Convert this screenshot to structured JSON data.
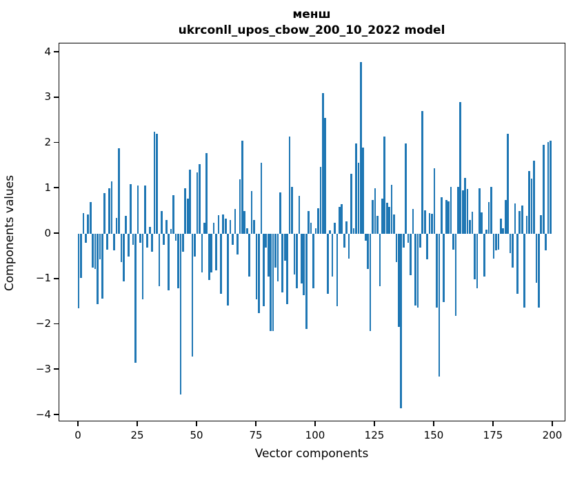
{
  "figure": {
    "title_line1": "менш",
    "title_line2": "ukrconll_upos_cbow_200_10_2022 model",
    "xlabel": "Vector components",
    "ylabel": "Components values"
  },
  "chart_data": {
    "type": "bar",
    "title": "менш\nukrconll_upos_cbow_200_10_2022 model",
    "xlabel": "Vector components",
    "ylabel": "Components values",
    "bar_color": "#1f77b4",
    "background_color": "#ffffff",
    "grid": false,
    "legend_position": "none",
    "x_start": 0,
    "x_step": 1,
    "n_bars": 200,
    "xticks": [
      0,
      25,
      50,
      75,
      100,
      125,
      150,
      175,
      200
    ],
    "yticks": [
      4,
      3,
      2,
      1,
      0,
      -1,
      -2,
      -3,
      -4
    ],
    "xlim": [
      -8.1,
      205.5
    ],
    "ylim": [
      -4.15,
      4.2
    ],
    "values": [
      -1.65,
      -0.97,
      0.45,
      -0.2,
      0.43,
      0.7,
      -0.75,
      -0.78,
      -1.55,
      -0.57,
      -1.43,
      0.89,
      -0.35,
      1.0,
      1.16,
      -0.36,
      0.35,
      1.88,
      -0.63,
      -1.05,
      0.4,
      -0.5,
      1.09,
      -0.25,
      -2.85,
      1.06,
      -0.2,
      -1.45,
      1.06,
      -0.3,
      0.15,
      -0.4,
      2.25,
      2.2,
      -1.15,
      0.5,
      -0.25,
      0.3,
      -1.25,
      0.1,
      0.85,
      -0.15,
      -1.2,
      -3.55,
      -0.4,
      1.0,
      0.78,
      1.42,
      -2.7,
      -0.5,
      1.35,
      1.54,
      -0.85,
      0.24,
      1.78,
      -1.02,
      -0.85,
      0.24,
      -0.81,
      0.41,
      -1.32,
      0.43,
      0.34,
      -1.58,
      0.3,
      -0.25,
      0.55,
      -0.45,
      1.2,
      2.05,
      0.5,
      0.12,
      -0.95,
      0.95,
      0.3,
      -1.45,
      -1.75,
      1.56,
      -1.6,
      -0.3,
      -0.95,
      -2.15,
      -2.15,
      -0.75,
      -1.05,
      0.91,
      -1.3,
      -0.6,
      -1.55,
      2.15,
      1.04,
      -0.9,
      -1.2,
      0.84,
      -1.1,
      -1.35,
      -2.1,
      0.5,
      0.24,
      -1.2,
      0.12,
      0.57,
      1.47,
      3.1,
      2.55,
      -1.33,
      0.07,
      -0.95,
      0.24,
      -1.6,
      0.59,
      0.66,
      -0.3,
      0.27,
      -0.55,
      1.33,
      0.12,
      2.0,
      1.57,
      3.78,
      1.9,
      -0.15,
      -0.78,
      -2.15,
      0.74,
      1.01,
      0.4,
      -1.15,
      0.77,
      2.15,
      0.68,
      0.6,
      1.08,
      0.42,
      -0.62,
      -2.05,
      -3.85,
      -0.3,
      2.0,
      -0.2,
      -0.92,
      0.54,
      -1.58,
      -1.62,
      -0.3,
      2.7,
      0.51,
      -0.57,
      0.45,
      0.44,
      1.45,
      -1.63,
      -3.15,
      0.81,
      -1.5,
      0.75,
      0.72,
      1.04,
      -0.35,
      -1.81,
      1.04,
      2.9,
      0.96,
      1.23,
      0.99,
      0.3,
      0.49,
      -1.0,
      -1.2,
      1.01,
      0.47,
      -0.95,
      0.09,
      0.7,
      1.03,
      -0.54,
      -0.37,
      -0.35,
      0.34,
      0.12,
      0.74,
      2.2,
      -0.42,
      -0.75,
      0.67,
      -1.33,
      0.5,
      0.62,
      -1.62,
      0.4,
      1.38,
      1.21,
      1.61,
      -1.08,
      -1.63,
      0.41,
      1.96,
      -0.37,
      2.02,
      2.06
    ]
  }
}
